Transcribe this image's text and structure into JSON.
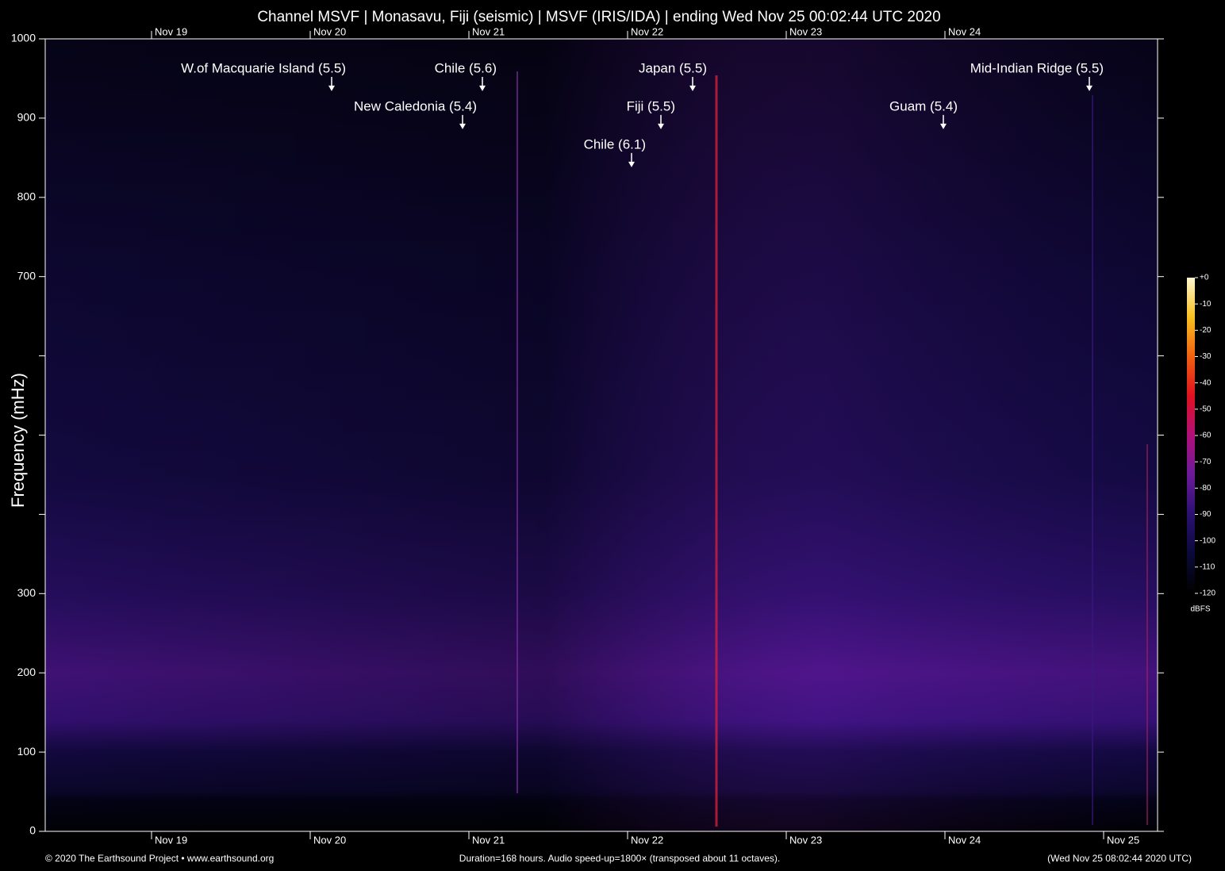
{
  "chart_data": {
    "type": "spectrogram",
    "title": "Channel MSVF | Monasavu, Fiji (seismic) | MSVF (IRIS/IDA) | ending Wed Nov 25 00:02:44 UTC 2020",
    "y_label": "Frequency (mHz)",
    "xlim": [
      18.33,
      25.34
    ],
    "xticks": [
      {
        "value": 19,
        "label": "Nov 19"
      },
      {
        "value": 20,
        "label": "Nov 20"
      },
      {
        "value": 21,
        "label": "Nov 21"
      },
      {
        "value": 22,
        "label": "Nov 22"
      },
      {
        "value": 23,
        "label": "Nov 23"
      },
      {
        "value": 24,
        "label": "Nov 24"
      },
      {
        "value": 25,
        "label": "Nov 25"
      }
    ],
    "top_xticks": [
      19,
      20,
      21,
      22,
      23,
      24
    ],
    "ylim": [
      0,
      1000
    ],
    "yticks": [
      0,
      100,
      200,
      300,
      {
        "value": 400,
        "label": null
      },
      {
        "value": 500,
        "label": null
      },
      {
        "value": 600,
        "label": null
      },
      700,
      800,
      900,
      1000
    ],
    "annotations": [
      {
        "text": "W.of Macquarie Island (5.5)",
        "x": 20.135,
        "y": 934
      },
      {
        "text": "Chile (5.6)",
        "x": 21.085,
        "y": 934
      },
      {
        "text": "New Caledonia (5.4)",
        "x": 20.96,
        "y": 886
      },
      {
        "text": "Japan (5.5)",
        "x": 22.41,
        "y": 934
      },
      {
        "text": "Fiji (5.5)",
        "x": 22.21,
        "y": 886
      },
      {
        "text": "Chile (6.1)",
        "x": 22.025,
        "y": 838
      },
      {
        "text": "Guam (5.4)",
        "x": 23.99,
        "y": 886
      },
      {
        "text": "Mid-Indian Ridge (5.5)",
        "x": 24.91,
        "y": 934
      }
    ],
    "colorbar": {
      "label": "dBFS",
      "lim": [
        -120,
        0
      ],
      "ticks": [
        {
          "value": 0,
          "label": "+0"
        },
        -10,
        -20,
        -30,
        -40,
        -50,
        -60,
        -70,
        -80,
        -90,
        -100,
        -110,
        -120
      ],
      "colormap": [
        "#000000",
        "#0a0a3a",
        "#2a1070",
        "#6a1a9a",
        "#b0107a",
        "#e01020",
        "#f06010",
        "#f8c020",
        "#fff8d0"
      ]
    },
    "footer": {
      "left": "© 2020 The Earthsound Project • www.earthsound.org",
      "center": "Duration=168 hours. Audio speed-up=1800× (transposed about 11 octaves).",
      "right": "(Wed Nov 25 08:02:44 2020 UTC)"
    }
  }
}
